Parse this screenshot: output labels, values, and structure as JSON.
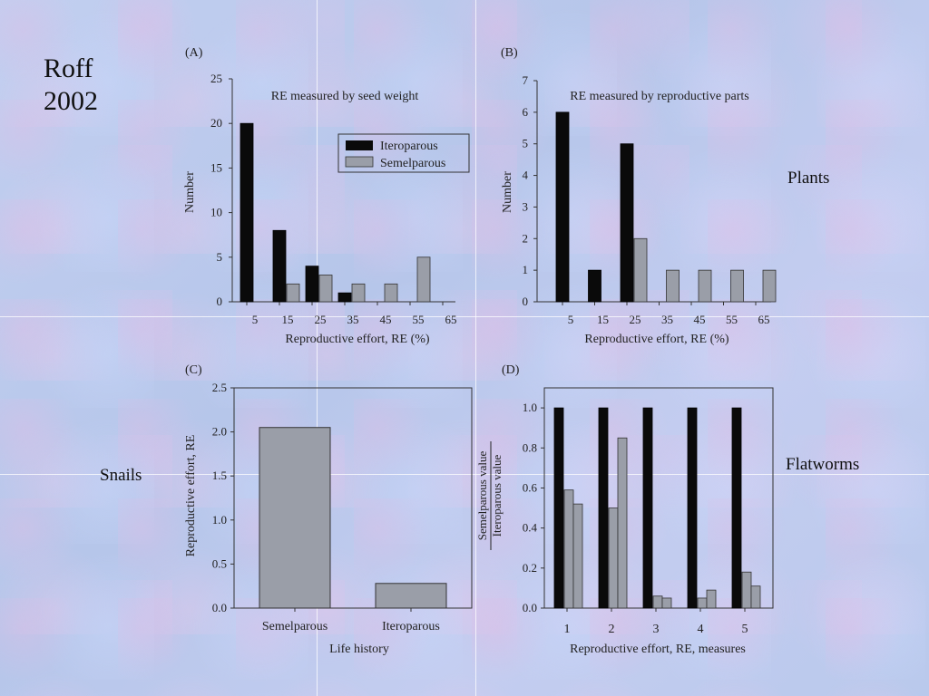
{
  "slide": {
    "title": "Roff 2002",
    "side_labels": {
      "plants": "Plants",
      "snails": "Snails",
      "flatworms": "Flatworms"
    }
  },
  "colors": {
    "iteroparous": "#0a0a0a",
    "semelparous": "#9a9ea8",
    "axis": "#333333"
  },
  "chart_data": [
    {
      "panel": "(A)",
      "type": "bar",
      "title": "RE measured by seed weight",
      "xlabel": "Reproductive effort, RE (%)",
      "ylabel": "Number",
      "categories": [
        "5",
        "15",
        "25",
        "35",
        "45",
        "55",
        "65"
      ],
      "ylim": [
        0,
        25
      ],
      "yticks": [
        0,
        5,
        10,
        15,
        20,
        25
      ],
      "legend": {
        "placement": "top-right",
        "entries": [
          "Iteroparous",
          "Semelparous"
        ]
      },
      "series": [
        {
          "name": "Iteroparous",
          "values": [
            20,
            8,
            4,
            1,
            0,
            0,
            0
          ]
        },
        {
          "name": "Semelparous",
          "values": [
            0,
            2,
            3,
            2,
            2,
            5,
            0
          ]
        }
      ]
    },
    {
      "panel": "(B)",
      "type": "bar",
      "title": "RE measured by reproductive parts",
      "xlabel": "Reproductive effort, RE (%)",
      "ylabel": "Number",
      "categories": [
        "5",
        "15",
        "25",
        "35",
        "45",
        "55",
        "65"
      ],
      "ylim": [
        0,
        7
      ],
      "yticks": [
        0,
        1,
        2,
        3,
        4,
        5,
        6,
        7
      ],
      "series": [
        {
          "name": "Iteroparous",
          "values": [
            6,
            1,
            5,
            0,
            0,
            0,
            0
          ]
        },
        {
          "name": "Semelparous",
          "values": [
            0,
            0,
            2,
            1,
            1,
            1,
            1
          ]
        }
      ]
    },
    {
      "panel": "(C)",
      "type": "bar",
      "xlabel": "Life history",
      "ylabel": "Reproductive effort, RE",
      "categories": [
        "Semelparous",
        "Iteroparous"
      ],
      "ylim": [
        0,
        2.5
      ],
      "yticks": [
        "0.0",
        "0.5",
        "1.0",
        "1.5",
        "2.0",
        "2.5"
      ],
      "values": [
        2.05,
        0.28
      ]
    },
    {
      "panel": "(D)",
      "type": "bar",
      "xlabel": "Reproductive effort, RE, measures",
      "ylabel_top": "Semelparous value",
      "ylabel_bottom": "Iteroparous value",
      "categories": [
        "1",
        "2",
        "3",
        "4",
        "5"
      ],
      "ylim": [
        0,
        1.1
      ],
      "yticks": [
        "0.0",
        "0.2",
        "0.4",
        "0.6",
        "0.8",
        "1.0"
      ],
      "series": [
        {
          "values": [
            1.0,
            1.0,
            1.0,
            1.0,
            1.0
          ]
        },
        {
          "values": [
            0.59,
            0.5,
            0.06,
            0.05,
            0.18
          ]
        },
        {
          "values": [
            0.52,
            0.85,
            0.05,
            0.09,
            0.11
          ]
        }
      ]
    }
  ]
}
